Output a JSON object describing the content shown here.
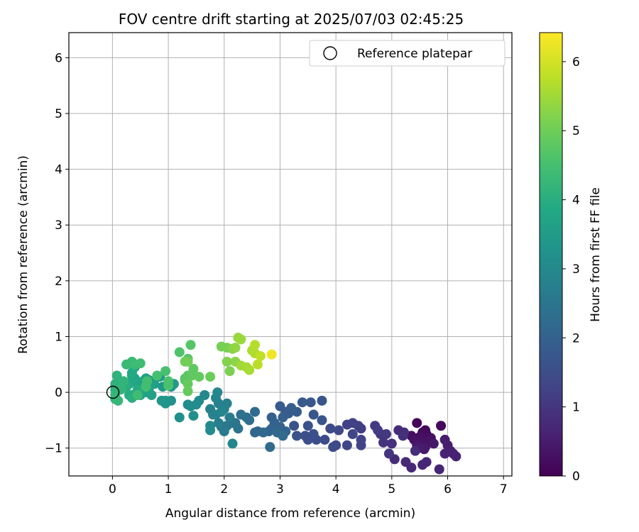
{
  "chart_data": {
    "type": "scatter",
    "title": "FOV centre drift starting at 2025/07/03 02:45:25",
    "xlabel": "Angular distance from reference (arcmin)",
    "ylabel": "Rotation from reference (arcmin)",
    "xlim": [
      -0.78,
      7.15
    ],
    "ylim": [
      -1.5,
      6.45
    ],
    "xticks": [
      "0",
      "1",
      "2",
      "3",
      "4",
      "5",
      "6",
      "7"
    ],
    "yticks": [
      "−1",
      "0",
      "1",
      "2",
      "3",
      "4",
      "5",
      "6"
    ],
    "grid": true,
    "legend": {
      "placement": "top-right",
      "entries": [
        "Reference platepar"
      ]
    },
    "reference_point": {
      "x": 0,
      "y": 0,
      "marker": "open-circle"
    },
    "colorbar": {
      "label": "Hours from first FF file",
      "range": [
        0,
        6.42
      ],
      "ticks": [
        "0",
        "1",
        "2",
        "3",
        "4",
        "5",
        "6"
      ],
      "colormap": "viridis"
    },
    "points": [
      [
        5.45,
        -0.55,
        0.1
      ],
      [
        5.88,
        -0.6,
        0.12
      ],
      [
        5.6,
        -0.68,
        0.15
      ],
      [
        5.55,
        -0.72,
        0.18
      ],
      [
        5.62,
        -0.75,
        0.2
      ],
      [
        5.35,
        -0.78,
        0.22
      ],
      [
        5.5,
        -0.8,
        0.25
      ],
      [
        5.7,
        -0.82,
        0.28
      ],
      [
        5.4,
        -0.85,
        0.3
      ],
      [
        5.65,
        -0.88,
        0.32
      ],
      [
        5.52,
        -0.9,
        0.35
      ],
      [
        5.75,
        -0.92,
        0.38
      ],
      [
        5.45,
        -0.95,
        0.4
      ],
      [
        5.6,
        -0.98,
        0.42
      ],
      [
        5.58,
        -1.02,
        0.45
      ],
      [
        5.48,
        -1.0,
        0.48
      ],
      [
        5.95,
        -0.85,
        0.5
      ],
      [
        6.0,
        -0.95,
        0.52
      ],
      [
        6.05,
        -1.05,
        0.55
      ],
      [
        6.1,
        -1.1,
        0.58
      ],
      [
        6.15,
        -1.15,
        0.6
      ],
      [
        5.95,
        -1.1,
        0.62
      ],
      [
        5.85,
        -1.38,
        0.65
      ],
      [
        5.62,
        -1.25,
        0.68
      ],
      [
        5.55,
        -1.3,
        0.7
      ],
      [
        5.35,
        -1.35,
        0.72
      ],
      [
        5.25,
        -1.25,
        0.75
      ],
      [
        5.05,
        -1.2,
        0.78
      ],
      [
        5.42,
        -1.05,
        0.8
      ],
      [
        5.12,
        -0.68,
        0.82
      ],
      [
        5.22,
        -0.72,
        0.85
      ],
      [
        5.2,
        -0.78,
        0.88
      ],
      [
        5.0,
        -0.92,
        0.9
      ],
      [
        4.85,
        -0.9,
        0.95
      ],
      [
        4.95,
        -1.1,
        0.98
      ],
      [
        4.8,
        -0.75,
        1.0
      ],
      [
        4.9,
        -0.75,
        1.05
      ],
      [
        4.7,
        -0.6,
        1.1
      ],
      [
        4.75,
        -0.68,
        1.12
      ],
      [
        4.45,
        -0.65,
        1.15
      ],
      [
        4.4,
        -0.6,
        1.2
      ],
      [
        4.3,
        -0.55,
        1.22
      ],
      [
        4.2,
        -0.58,
        1.25
      ],
      [
        4.45,
        -0.85,
        1.28
      ],
      [
        4.45,
        -0.95,
        1.3
      ],
      [
        4.3,
        -0.75,
        1.32
      ],
      [
        4.2,
        -0.95,
        1.35
      ],
      [
        4.0,
        -0.95,
        1.38
      ],
      [
        4.05,
        -0.68,
        1.4
      ],
      [
        3.9,
        -0.65,
        1.42
      ],
      [
        3.95,
        -0.98,
        1.45
      ],
      [
        3.8,
        -0.85,
        1.48
      ],
      [
        3.65,
        -0.85,
        1.5
      ],
      [
        3.5,
        -0.85,
        1.52
      ],
      [
        3.45,
        -0.78,
        1.55
      ],
      [
        3.6,
        -0.75,
        1.58
      ],
      [
        3.3,
        -0.78,
        1.6
      ],
      [
        3.5,
        -0.6,
        1.62
      ],
      [
        3.25,
        -0.6,
        1.65
      ],
      [
        3.75,
        -0.5,
        1.68
      ],
      [
        3.6,
        -0.4,
        1.7
      ],
      [
        3.75,
        -0.15,
        1.72
      ],
      [
        3.55,
        -0.18,
        1.75
      ],
      [
        3.4,
        -0.18,
        1.78
      ],
      [
        3.1,
        -0.35,
        1.8
      ],
      [
        3.0,
        -0.25,
        1.82
      ],
      [
        3.3,
        -0.35,
        1.85
      ],
      [
        3.15,
        -0.38,
        1.88
      ],
      [
        3.2,
        -0.28,
        1.9
      ],
      [
        3.05,
        -0.45,
        1.92
      ],
      [
        2.85,
        -0.45,
        1.95
      ],
      [
        2.9,
        -0.55,
        1.98
      ],
      [
        3.0,
        -0.62,
        2.0
      ],
      [
        3.1,
        -0.7,
        2.02
      ],
      [
        2.85,
        -0.65,
        2.05
      ],
      [
        2.8,
        -0.7,
        2.08
      ],
      [
        2.6,
        -0.7,
        2.1
      ],
      [
        2.55,
        -0.72,
        2.12
      ],
      [
        2.7,
        -0.72,
        2.15
      ],
      [
        2.95,
        -0.72,
        2.18
      ],
      [
        3.05,
        -0.78,
        2.2
      ],
      [
        2.82,
        -0.98,
        2.22
      ],
      [
        2.55,
        -0.35,
        2.25
      ],
      [
        2.4,
        -0.45,
        2.3
      ],
      [
        2.45,
        -0.5,
        2.32
      ],
      [
        2.3,
        -0.4,
        2.35
      ],
      [
        2.2,
        -0.55,
        2.4
      ],
      [
        2.25,
        -0.65,
        2.45
      ],
      [
        2.15,
        -0.55,
        2.5
      ],
      [
        2.05,
        -0.6,
        2.55
      ],
      [
        2.0,
        -0.7,
        2.6
      ],
      [
        1.95,
        -0.62,
        2.62
      ],
      [
        2.1,
        -0.45,
        2.65
      ],
      [
        1.9,
        -0.55,
        2.7
      ],
      [
        1.85,
        -0.4,
        2.72
      ],
      [
        2.0,
        -0.3,
        2.75
      ],
      [
        1.9,
        -0.2,
        2.78
      ],
      [
        2.05,
        -0.2,
        2.8
      ],
      [
        1.75,
        -0.3,
        2.82
      ],
      [
        1.8,
        -0.4,
        2.85
      ],
      [
        1.95,
        -0.35,
        2.88
      ],
      [
        1.85,
        -0.1,
        2.9
      ],
      [
        1.88,
        0.0,
        2.92
      ],
      [
        2.15,
        -0.92,
        2.95
      ],
      [
        1.65,
        -0.05,
        2.98
      ],
      [
        1.75,
        -0.6,
        3.0
      ],
      [
        1.75,
        -0.68,
        3.02
      ],
      [
        1.55,
        -0.15,
        3.05
      ],
      [
        1.5,
        -0.22,
        3.08
      ],
      [
        1.4,
        -0.25,
        3.1
      ],
      [
        1.35,
        -0.22,
        3.12
      ],
      [
        1.45,
        -0.42,
        3.15
      ],
      [
        1.2,
        -0.45,
        3.18
      ],
      [
        1.05,
        0.1,
        3.2
      ],
      [
        1.05,
        -0.15,
        3.25
      ],
      [
        0.95,
        -0.2,
        3.3
      ],
      [
        0.95,
        -0.15,
        3.32
      ],
      [
        0.88,
        -0.15,
        3.35
      ],
      [
        0.9,
        0.1,
        3.4
      ],
      [
        1.1,
        0.15,
        3.45
      ],
      [
        0.85,
        0.28,
        3.5
      ],
      [
        0.65,
        0.22,
        3.55
      ],
      [
        0.6,
        0.25,
        3.58
      ],
      [
        0.75,
        0.15,
        3.6
      ],
      [
        0.7,
        -0.05,
        3.62
      ],
      [
        0.6,
        0.0,
        3.65
      ],
      [
        0.5,
        0.15,
        3.68
      ],
      [
        0.55,
        0.2,
        3.7
      ],
      [
        0.65,
        0.05,
        3.72
      ],
      [
        0.5,
        -0.05,
        3.75
      ],
      [
        0.45,
        0.15,
        3.78
      ],
      [
        0.4,
        0.25,
        3.8
      ],
      [
        0.35,
        0.3,
        3.82
      ],
      [
        0.3,
        0.15,
        3.85
      ],
      [
        0.35,
        0.35,
        3.88
      ],
      [
        0.4,
        0.45,
        3.9
      ],
      [
        0.45,
        0.05,
        3.92
      ],
      [
        0.35,
        -0.05,
        3.95
      ],
      [
        0.3,
        -0.05,
        3.98
      ],
      [
        0.35,
        -0.1,
        4.0
      ],
      [
        0.25,
        0.1,
        4.02
      ],
      [
        0.1,
        0.1,
        4.05
      ],
      [
        0.05,
        0.05,
        4.08
      ],
      [
        0.05,
        0.15,
        4.1
      ],
      [
        0.08,
        0.3,
        4.12
      ],
      [
        0.15,
        0.05,
        4.15
      ],
      [
        0.2,
        0.2,
        4.18
      ],
      [
        0.05,
        -0.05,
        4.2
      ],
      [
        0.05,
        -0.12,
        4.22
      ],
      [
        0.1,
        -0.15,
        4.25
      ],
      [
        0.25,
        0.5,
        4.3
      ],
      [
        0.35,
        0.55,
        4.35
      ],
      [
        0.4,
        0.5,
        4.38
      ],
      [
        0.5,
        0.52,
        4.4
      ],
      [
        0.45,
        -0.05,
        4.42
      ],
      [
        0.6,
        0.1,
        4.45
      ],
      [
        0.62,
        0.2,
        4.48
      ],
      [
        0.8,
        0.3,
        4.5
      ],
      [
        0.95,
        0.38,
        4.52
      ],
      [
        1.0,
        0.12,
        4.55
      ],
      [
        1.0,
        0.2,
        4.58
      ],
      [
        1.2,
        0.72,
        4.62
      ],
      [
        1.3,
        0.25,
        4.65
      ],
      [
        1.35,
        0.6,
        4.68
      ],
      [
        1.4,
        0.85,
        4.7
      ],
      [
        1.3,
        0.22,
        4.75
      ],
      [
        1.35,
        0.3,
        4.78
      ],
      [
        1.45,
        0.42,
        4.8
      ],
      [
        1.42,
        0.3,
        4.82
      ],
      [
        1.55,
        0.28,
        4.85
      ],
      [
        1.35,
        0.15,
        4.88
      ],
      [
        1.35,
        0.02,
        4.9
      ],
      [
        1.75,
        0.28,
        4.95
      ],
      [
        1.3,
        0.55,
        5.0
      ],
      [
        1.35,
        0.55,
        5.02
      ],
      [
        1.95,
        0.82,
        5.05
      ],
      [
        2.05,
        0.8,
        5.1
      ],
      [
        2.1,
        0.38,
        5.15
      ],
      [
        2.05,
        0.55,
        5.2
      ],
      [
        2.15,
        0.78,
        5.25
      ],
      [
        2.2,
        0.55,
        5.3
      ],
      [
        2.2,
        0.8,
        5.35
      ],
      [
        2.25,
        0.98,
        5.4
      ],
      [
        2.3,
        0.95,
        5.45
      ],
      [
        2.3,
        0.48,
        5.5
      ],
      [
        2.4,
        0.45,
        5.55
      ],
      [
        2.45,
        0.4,
        5.58
      ],
      [
        2.5,
        0.75,
        5.62
      ],
      [
        2.55,
        0.7,
        5.65
      ],
      [
        2.55,
        0.85,
        5.7
      ],
      [
        2.6,
        0.5,
        5.75
      ],
      [
        2.65,
        0.65,
        5.8
      ],
      [
        2.85,
        0.68,
        6.3
      ]
    ]
  }
}
